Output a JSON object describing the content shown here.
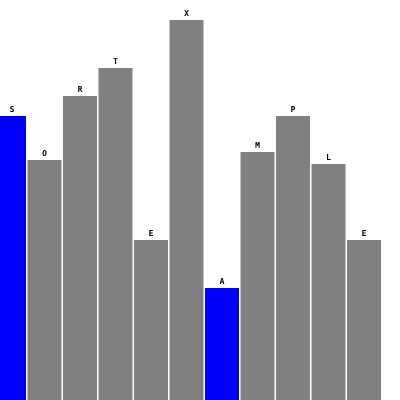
{
  "chart_data": {
    "type": "bar",
    "categories": [
      "S",
      "O",
      "R",
      "T",
      "E",
      "X",
      "A",
      "M",
      "P",
      "L",
      "E"
    ],
    "values": [
      71,
      60,
      76,
      83,
      40,
      95,
      28,
      62,
      71,
      59,
      40
    ],
    "highlighted": [
      true,
      false,
      false,
      false,
      false,
      false,
      true,
      false,
      false,
      false,
      false
    ],
    "ylim": [
      0,
      100
    ],
    "grid": false,
    "colors": {
      "bar": "#808080",
      "highlight": "#0000ff",
      "background": "#ffffff",
      "label": "#000000"
    }
  }
}
